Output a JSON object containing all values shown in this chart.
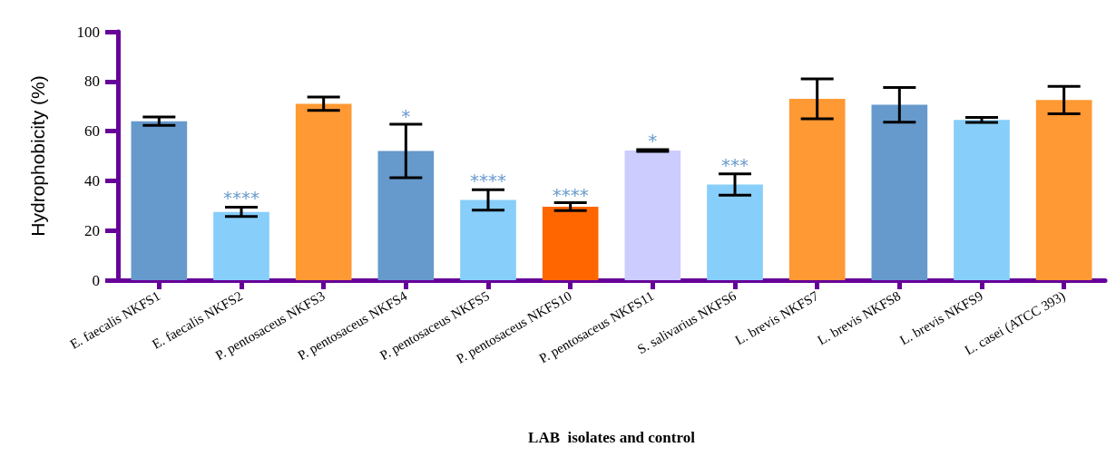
{
  "chart_data": {
    "type": "bar",
    "xlabel": "LAB  isolates and control",
    "ylabel": "Hydrophobicity (%)",
    "categories": [
      "E. faecalis NKFS1",
      "E. faecalis NKFS2",
      "P. pentosaceus NKFS3",
      "P. pentosaceus NKFS4",
      "P. pentosaceus NKFS5",
      "P. pentosaceus NKFS10",
      "P. pentosaceus NKFS11",
      "S. salivarius NKFS6",
      "L. brevis NKFS7",
      "L. brevis NKFS8",
      "L. brevis NKFS9",
      "L. casei (ATCC 393)"
    ],
    "values": [
      64,
      27.5,
      71,
      52,
      32.3,
      29.6,
      52.2,
      38.5,
      73,
      70.6,
      64.5,
      72.5
    ],
    "errors": [
      1.7,
      1.9,
      2.7,
      10.8,
      4.1,
      1.6,
      0.4,
      4.3,
      8,
      7,
      1,
      5.5
    ],
    "colors": [
      "#6699cc",
      "#87cefa",
      "#ff9933",
      "#6699cc",
      "#87cefa",
      "#ff6600",
      "#ccccff",
      "#87cefa",
      "#ff9933",
      "#6699cc",
      "#87cefa",
      "#ff9933"
    ],
    "ylim": [
      0,
      100
    ],
    "yticks": [
      0,
      20,
      40,
      60,
      80,
      100
    ],
    "grid": false,
    "annotations": [
      {
        "text": "****",
        "x": "E. faecalis NKFS2",
        "y": 31
      },
      {
        "text": "*",
        "x": "P. pentosaceus NKFS4",
        "y": 64
      },
      {
        "text": "****",
        "x": "P. pentosaceus NKFS5",
        "y": 38
      },
      {
        "text": "****",
        "x": "P. pentosaceus NKFS10",
        "y": 32
      },
      {
        "text": "*",
        "x": "P. pentosaceus NKFS11",
        "y": 54
      },
      {
        "text": "***",
        "x": "S. salivarius NKFS6",
        "y": 44
      }
    ]
  }
}
